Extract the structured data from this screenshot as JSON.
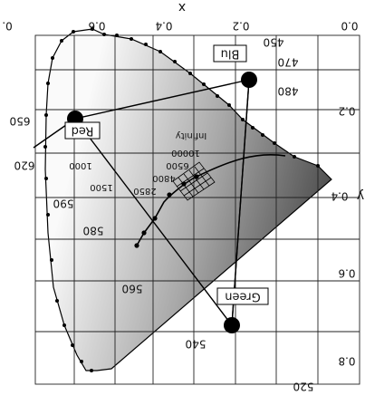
{
  "image_orientation": "rotated 180 degrees",
  "axes": {
    "x_label": "x",
    "y_label": "y",
    "x_ticks": [
      "0.0",
      "0.2",
      "0.4",
      "0.6"
    ],
    "y_ticks": [
      "0.0",
      "0.2",
      "0.4",
      "0.6",
      "0.8"
    ],
    "corner_fragment": "0."
  },
  "primaries": {
    "red": "Red",
    "green": "Green",
    "blue": "Blu"
  },
  "wavelengths": {
    "w450": "450",
    "w470": "470",
    "w480": "480",
    "w520": "520",
    "w540": "540",
    "w560": "560",
    "w580": "580",
    "w590": "590",
    "w620": "620",
    "w650": "650"
  },
  "planckian_locus": {
    "t1000": "1000",
    "t1500": "1500",
    "t2850": "2850",
    "t4800": "4800",
    "t6500": "6500",
    "t10000": "10000",
    "infinity": "Infinity"
  },
  "colors": {
    "gamut_dark": "#3a3a3a",
    "gamut_light": "#f4f4f4",
    "grid": "#222222",
    "marker": "#000000"
  }
}
